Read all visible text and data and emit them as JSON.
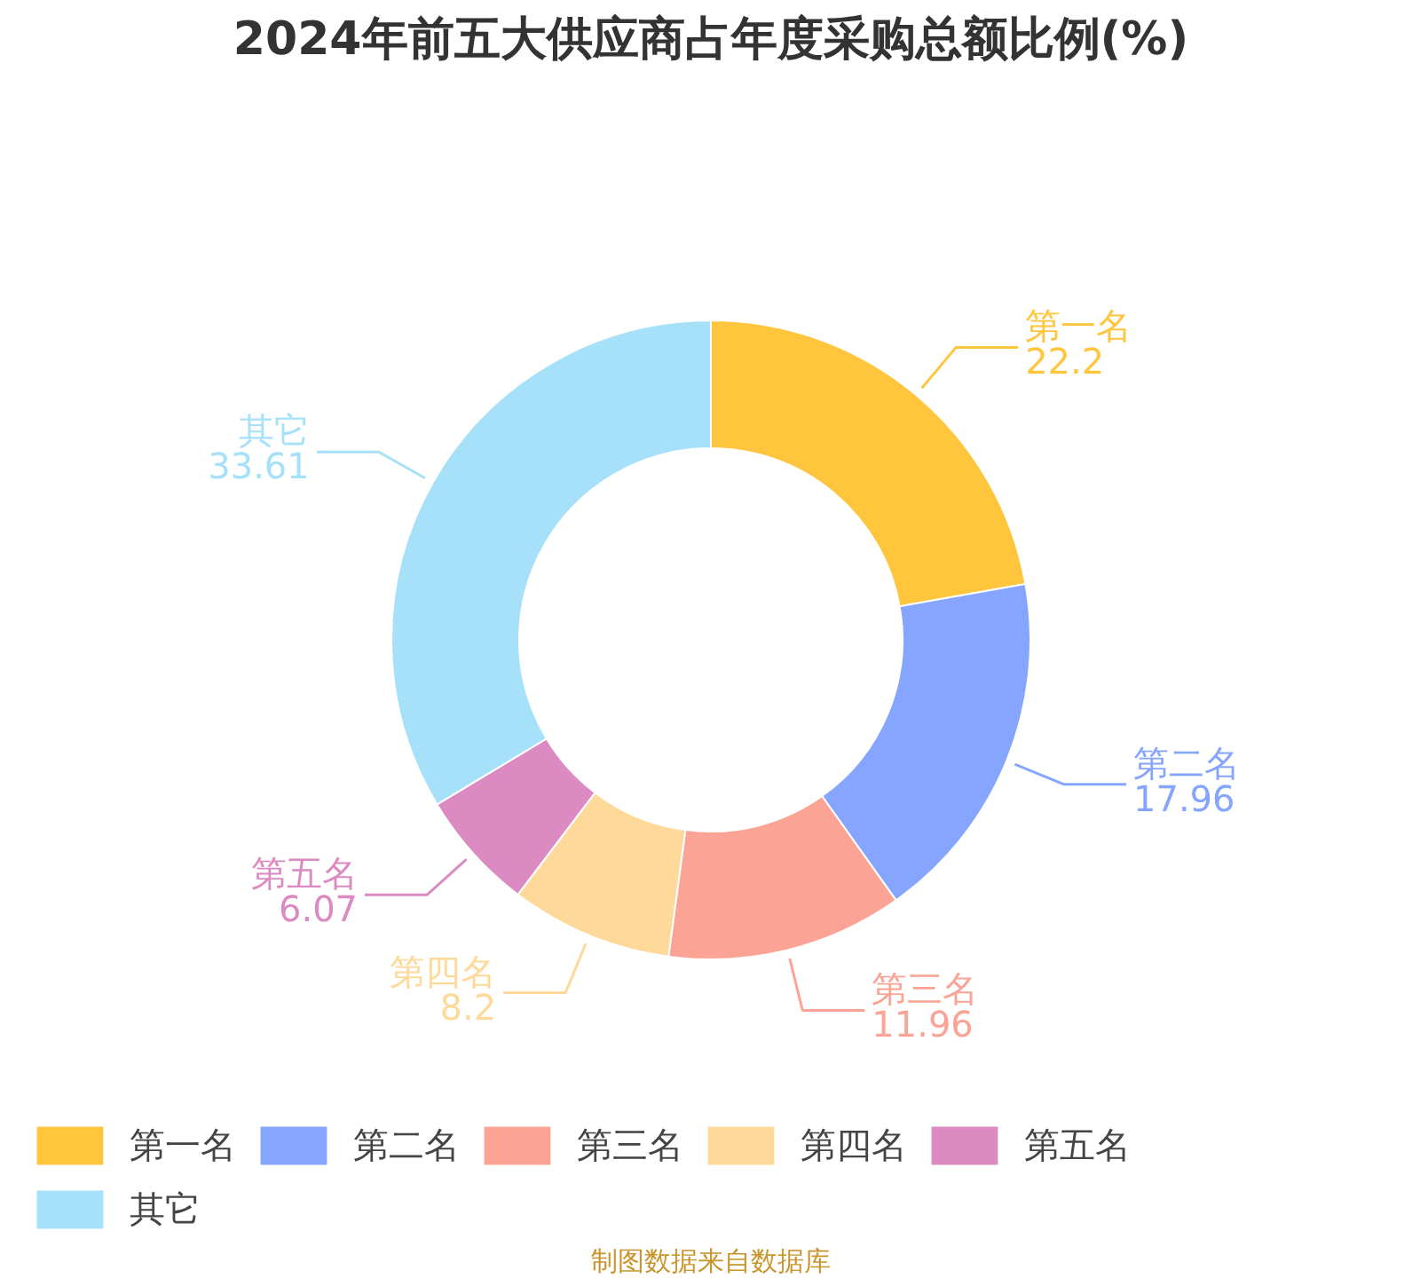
{
  "chart_data": {
    "type": "donut",
    "title": "2024年前五大供应商占年度采购总额比例(%)",
    "categories": [
      "第一名",
      "第二名",
      "第三名",
      "第四名",
      "第五名",
      "其它"
    ],
    "values": [
      22.2,
      17.96,
      11.96,
      8.2,
      6.07,
      33.61
    ],
    "colors": [
      "#ffc53d",
      "#85a5ff",
      "#fba496",
      "#ffd99a",
      "#db8bc1",
      "#a6e0f9"
    ],
    "data_labels": true,
    "legend": "bottom",
    "annotations": [
      "制图数据来自数据库"
    ]
  }
}
